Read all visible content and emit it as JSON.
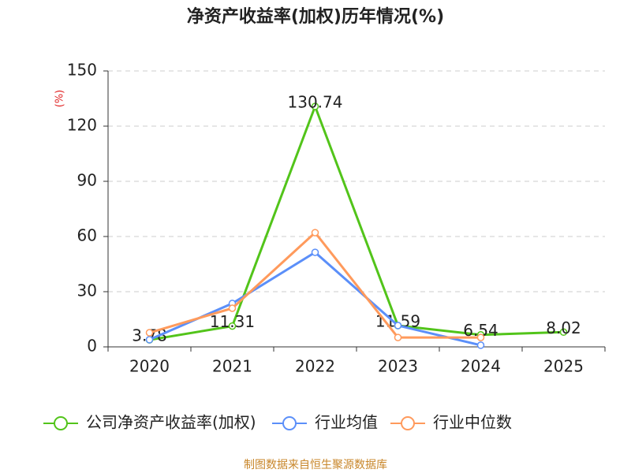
{
  "chart_data": {
    "type": "line",
    "title": "净资产收益率(加权)历年情况(%)",
    "y_label": "(%)",
    "categories": [
      "2020",
      "2021",
      "2022",
      "2023",
      "2024",
      "2025"
    ],
    "series": [
      {
        "name": "公司净资产收益率(加权)",
        "color": "#52c41a",
        "values": [
          3.78,
          11.31,
          130.74,
          11.59,
          6.54,
          8.02
        ],
        "show_labels": true
      },
      {
        "name": "行业均值",
        "color": "#5b8ff9",
        "values": [
          3.9,
          23.6,
          51.4,
          11.6,
          0.9,
          null
        ],
        "show_labels": false
      },
      {
        "name": "行业中位数",
        "color": "#ff9a5c",
        "values": [
          7.7,
          21,
          62.1,
          5.1,
          5.1,
          null
        ],
        "show_labels": false
      }
    ],
    "ylim": [
      0,
      150
    ],
    "yticks": [
      0,
      30,
      60,
      90,
      120,
      150
    ],
    "grid": true,
    "source": "制图数据来自恒生聚源数据库"
  }
}
